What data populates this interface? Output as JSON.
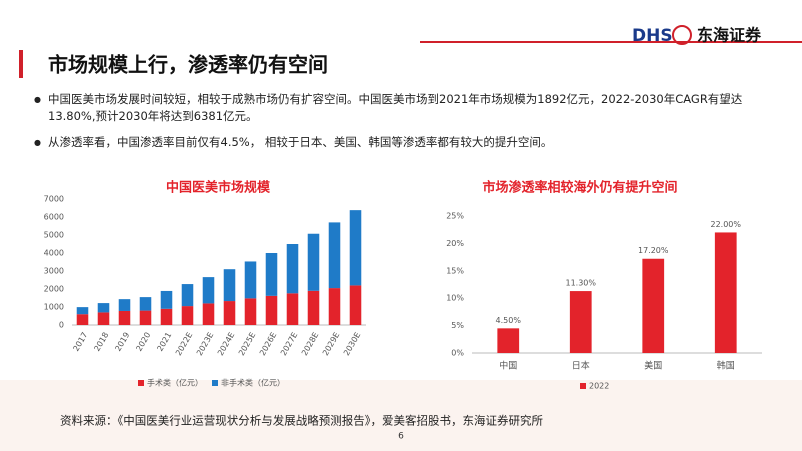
{
  "header": {
    "title": "市场规模上行，渗透率仍有空间",
    "logo": "DHS",
    "company": "东海证券"
  },
  "bullets": [
    "中国医美市场发展时间较短，相较于成熟市场仍有扩容空间。中国医美市场到2021年市场规模为1892亿元，2022-2030年CAGR有望达13.80%,预计2030年将达到6381亿元。",
    "从渗透率看，中国渗透率目前仅有4.5%， 相较于日本、美国、韩国等渗透率都有较大的提升空间。"
  ],
  "source": "资料来源：《中国医美行业运营现状分析与发展战略预测报告》，爱美客招股书，东海证券研究所",
  "page_number": "6",
  "chart_data": [
    {
      "type": "stacked_bar",
      "title": "中国医美市场规模",
      "categories": [
        "2017",
        "2018",
        "2019",
        "2020",
        "2021",
        "2022E",
        "2023E",
        "2024E",
        "2025E",
        "2026E",
        "2027E",
        "2028E",
        "2029E",
        "2030E"
      ],
      "series": [
        {
          "name": "手术类（亿元）",
          "color": "#e3232b",
          "values": [
            600,
            700,
            780,
            800,
            900,
            1050,
            1200,
            1330,
            1480,
            1620,
            1760,
            1900,
            2050,
            2200
          ]
        },
        {
          "name": "非手术类（亿元）",
          "color": "#1f7bc8",
          "values": [
            393,
            517,
            656,
            749,
            992,
            1224,
            1460,
            1770,
            2050,
            2380,
            2740,
            3170,
            3650,
            4181
          ]
        }
      ],
      "ylim": [
        0,
        7000
      ],
      "yticks": [
        0,
        1000,
        2000,
        3000,
        4000,
        5000,
        6000,
        7000
      ],
      "grid": false
    },
    {
      "type": "bar",
      "title": "市场渗透率相较海外仍有提升空间",
      "categories": [
        "中国",
        "日本",
        "美国",
        "韩国"
      ],
      "series": [
        {
          "name": "2022",
          "color": "#e3232b",
          "values": [
            4.5,
            11.3,
            17.2,
            22.0
          ],
          "value_labels": [
            "4.50%",
            "11.30%",
            "17.20%",
            "22.00%"
          ]
        }
      ],
      "ylim": [
        0,
        25
      ],
      "yticks": [
        {
          "value": 0,
          "label": "0%"
        },
        {
          "value": 5,
          "label": "5%"
        },
        {
          "value": 10,
          "label": "10%"
        },
        {
          "value": 15,
          "label": "15%"
        },
        {
          "value": 20,
          "label": "20%"
        },
        {
          "value": 25,
          "label": "25%"
        }
      ],
      "grid": false
    }
  ]
}
